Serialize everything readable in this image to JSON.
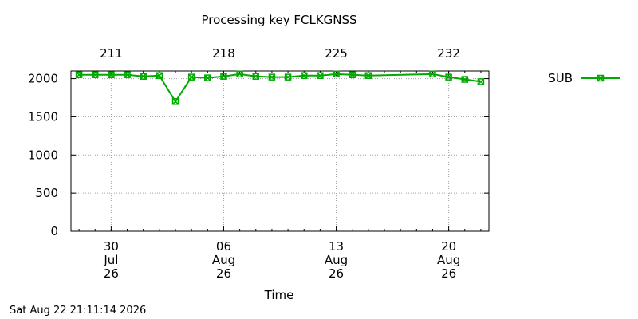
{
  "chart_data": {
    "type": "line",
    "title": "Processing key FCLKGNSS",
    "xlabel": "Time",
    "ylabel": "",
    "ylim": [
      0,
      2100
    ],
    "xlim": [
      "2026-07-27T12:00",
      "2026-08-22T12:00"
    ],
    "grid": true,
    "legend_position": "top-right",
    "y_ticks": [
      "0",
      "500",
      "1000",
      "1500",
      "2000"
    ],
    "x_ticks": [
      {
        "date": "2026-07-30",
        "lines": [
          "30",
          "Jul",
          "26"
        ]
      },
      {
        "date": "2026-08-06",
        "lines": [
          "06",
          "Aug",
          "26"
        ]
      },
      {
        "date": "2026-08-13",
        "lines": [
          "13",
          "Aug",
          "26"
        ]
      },
      {
        "date": "2026-08-20",
        "lines": [
          "20",
          "Aug",
          "26"
        ]
      }
    ],
    "top_ticks": [
      {
        "date": "2026-07-30",
        "label": "211"
      },
      {
        "date": "2026-08-06",
        "label": "218"
      },
      {
        "date": "2026-08-13",
        "label": "225"
      },
      {
        "date": "2026-08-20",
        "label": "232"
      }
    ],
    "series": [
      {
        "name": "SUB",
        "color": "#00aa00",
        "marker": "x-square",
        "points": [
          {
            "x": "2026-07-28",
            "y": 2050
          },
          {
            "x": "2026-07-29",
            "y": 2050
          },
          {
            "x": "2026-07-30",
            "y": 2050
          },
          {
            "x": "2026-07-31",
            "y": 2050
          },
          {
            "x": "2026-08-01",
            "y": 2030
          },
          {
            "x": "2026-08-02",
            "y": 2040
          },
          {
            "x": "2026-08-03",
            "y": 1700
          },
          {
            "x": "2026-08-04",
            "y": 2020
          },
          {
            "x": "2026-08-05",
            "y": 2010
          },
          {
            "x": "2026-08-06",
            "y": 2030
          },
          {
            "x": "2026-08-07",
            "y": 2060
          },
          {
            "x": "2026-08-08",
            "y": 2030
          },
          {
            "x": "2026-08-09",
            "y": 2020
          },
          {
            "x": "2026-08-10",
            "y": 2020
          },
          {
            "x": "2026-08-11",
            "y": 2040
          },
          {
            "x": "2026-08-12",
            "y": 2040
          },
          {
            "x": "2026-08-13",
            "y": 2060
          },
          {
            "x": "2026-08-14",
            "y": 2050
          },
          {
            "x": "2026-08-15",
            "y": 2040
          },
          {
            "x": "2026-08-19",
            "y": 2060
          },
          {
            "x": "2026-08-20",
            "y": 2020
          },
          {
            "x": "2026-08-21",
            "y": 1990
          },
          {
            "x": "2026-08-22",
            "y": 1960
          }
        ]
      }
    ]
  },
  "footer": {
    "timestamp": "Sat Aug 22 21:11:14 2026"
  }
}
